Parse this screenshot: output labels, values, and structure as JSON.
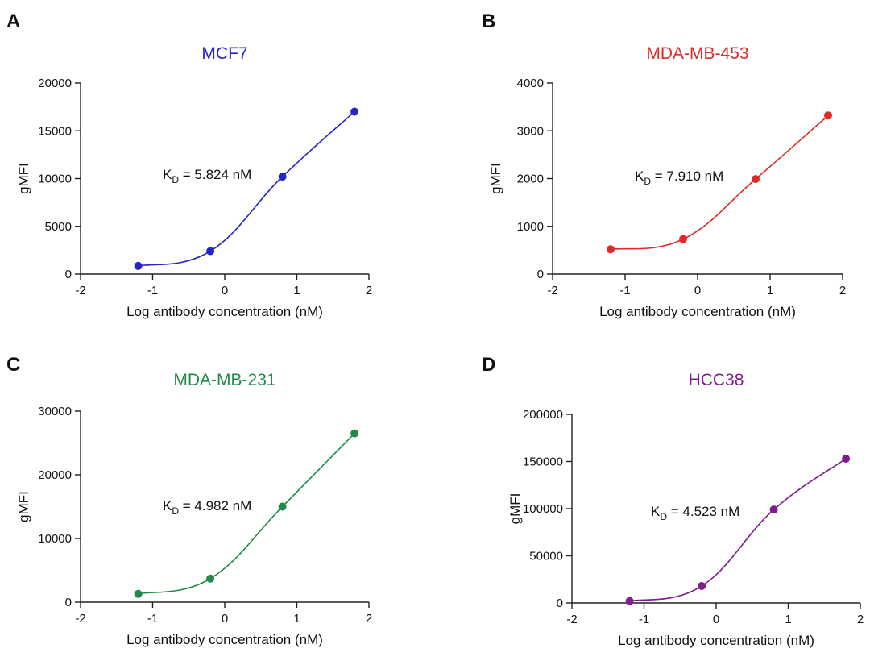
{
  "chart_data": [
    {
      "type": "line",
      "panel": "A",
      "title": "MCF7",
      "color": "#2426c8",
      "xlabel": "Log antibody concentration (nM)",
      "ylabel": "gMFI",
      "xlim": [
        -2,
        2
      ],
      "ylim": [
        0,
        20000
      ],
      "xticks": [
        -2,
        -1,
        0,
        1,
        2
      ],
      "yticks": [
        0,
        5000,
        10000,
        15000,
        20000
      ],
      "x": [
        -1.2,
        -0.2,
        0.8,
        1.8
      ],
      "y": [
        850,
        2400,
        10200,
        17000
      ],
      "annotation": {
        "prefix": "K",
        "sub": "D",
        "text": " = 5.824 nM"
      }
    },
    {
      "type": "line",
      "panel": "B",
      "title": "MDA-MB-453",
      "color": "#e02a2a",
      "xlabel": "Log antibody concentration (nM)",
      "ylabel": "gMFI",
      "xlim": [
        -2,
        2
      ],
      "ylim": [
        0,
        4000
      ],
      "xticks": [
        -2,
        -1,
        0,
        1,
        2
      ],
      "yticks": [
        0,
        1000,
        2000,
        3000,
        4000
      ],
      "x": [
        -1.2,
        -0.2,
        0.8,
        1.8
      ],
      "y": [
        520,
        730,
        1990,
        3320
      ],
      "annotation": {
        "prefix": "K",
        "sub": "D",
        "text": " = 7.910 nM"
      }
    },
    {
      "type": "line",
      "panel": "C",
      "title": "MDA-MB-231",
      "color": "#1f8a4c",
      "xlabel": "Log antibody concentration (nM)",
      "ylabel": "gMFI",
      "xlim": [
        -2,
        2
      ],
      "ylim": [
        0,
        30000
      ],
      "xticks": [
        -2,
        -1,
        0,
        1,
        2
      ],
      "yticks": [
        0,
        10000,
        20000,
        30000
      ],
      "x": [
        -1.2,
        -0.2,
        0.8,
        1.8
      ],
      "y": [
        1300,
        3700,
        15000,
        26500
      ],
      "annotation": {
        "prefix": "K",
        "sub": "D",
        "text": " = 4.982 nM"
      }
    },
    {
      "type": "line",
      "panel": "D",
      "title": "HCC38",
      "color": "#801c8c",
      "xlabel": "Log antibody concentration (nM)",
      "ylabel": "gMFI",
      "xlim": [
        -2,
        2
      ],
      "ylim": [
        0,
        200000
      ],
      "xticks": [
        -2,
        -1,
        0,
        1,
        2
      ],
      "yticks": [
        0,
        50000,
        100000,
        150000,
        200000
      ],
      "x": [
        -1.2,
        -0.2,
        0.8,
        1.8
      ],
      "y": [
        2000,
        18000,
        99000,
        153000
      ],
      "annotation": {
        "prefix": "K",
        "sub": "D",
        "text": " = 4.523 nM"
      }
    }
  ]
}
